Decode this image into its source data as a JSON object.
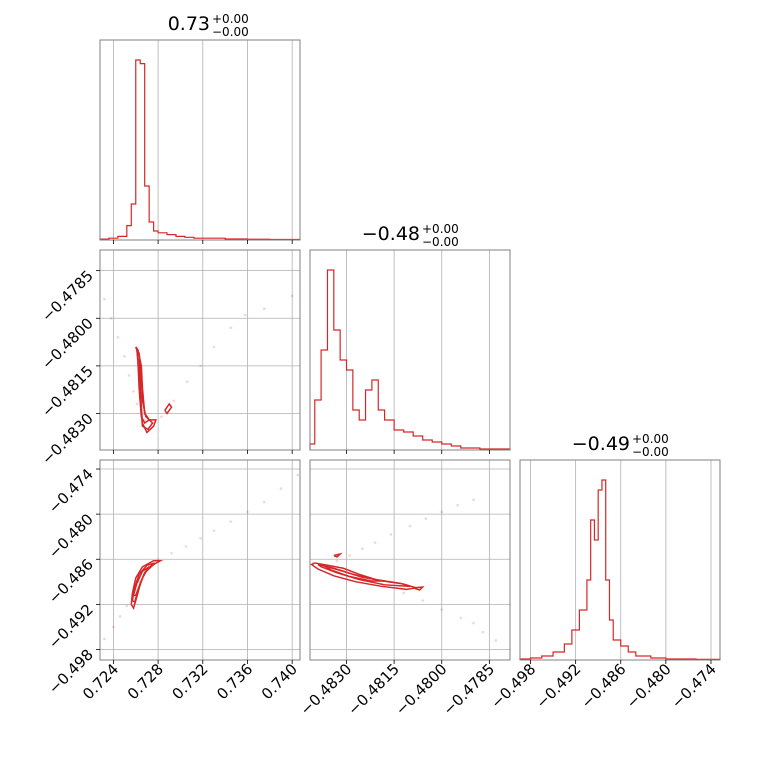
{
  "chart_data": {
    "type": "corner",
    "color": "#d62728",
    "grid": true,
    "titles": [
      {
        "value": "0.73",
        "upper": "+0.00",
        "lower": "−0.00"
      },
      {
        "value": "−0.48",
        "upper": "+0.00",
        "lower": "−0.00"
      },
      {
        "value": "−0.49",
        "upper": "+0.00",
        "lower": "−0.00"
      }
    ],
    "params": [
      {
        "range": [
          0.7228,
          0.7407
        ],
        "ticks": [
          0.724,
          0.728,
          0.732,
          0.736,
          0.74
        ],
        "tick_labels": [
          "0.724",
          "0.728",
          "0.732",
          "0.736",
          "0.740"
        ]
      },
      {
        "range": [
          -0.48415,
          -0.47785
        ],
        "ticks": [
          -0.483,
          -0.4815,
          -0.48,
          -0.4785
        ],
        "tick_labels": [
          "−0.4830",
          "−0.4815",
          "−0.4800",
          "−0.4785"
        ]
      },
      {
        "range": [
          -0.4994,
          -0.4728
        ],
        "ticks": [
          -0.498,
          -0.492,
          -0.486,
          -0.48,
          -0.474
        ],
        "tick_labels": [
          "−0.498",
          "−0.492",
          "−0.486",
          "−0.480",
          "−0.474"
        ]
      }
    ],
    "hist_0": {
      "bins": [
        0.7228,
        0.7236,
        0.7244,
        0.7252,
        0.7256,
        0.726,
        0.7264,
        0.7268,
        0.7272,
        0.7276,
        0.728,
        0.7288,
        0.7296,
        0.7304,
        0.7312,
        0.732,
        0.734,
        0.736,
        0.738,
        0.7407
      ],
      "counts": [
        0.5,
        1,
        2,
        8,
        20,
        100,
        98,
        30,
        10,
        5,
        4,
        3,
        2,
        1.5,
        1,
        1,
        0.6,
        0.4,
        0.3
      ]
    },
    "hist_1": {
      "bins": [
        -0.48415,
        -0.484,
        -0.4838,
        -0.4836,
        -0.4834,
        -0.4832,
        -0.483,
        -0.4828,
        -0.4826,
        -0.4824,
        -0.4822,
        -0.482,
        -0.4818,
        -0.4815,
        -0.4812,
        -0.4809,
        -0.4806,
        -0.4803,
        -0.48,
        -0.4797,
        -0.4794,
        -0.4791,
        -0.4788,
        -0.47785
      ],
      "counts": [
        3,
        25,
        50,
        90,
        60,
        45,
        40,
        20,
        15,
        30,
        35,
        20,
        15,
        10,
        9,
        7,
        5,
        4,
        3,
        2,
        1,
        1,
        0.5
      ]
    },
    "hist_2": {
      "bins": [
        -0.4994,
        -0.498,
        -0.4965,
        -0.495,
        -0.4935,
        -0.4925,
        -0.4915,
        -0.4905,
        -0.49,
        -0.4895,
        -0.489,
        -0.4885,
        -0.488,
        -0.4875,
        -0.487,
        -0.486,
        -0.485,
        -0.484,
        -0.482,
        -0.48,
        -0.476,
        -0.4728
      ],
      "counts": [
        0.5,
        1,
        2,
        4,
        8,
        15,
        25,
        40,
        70,
        60,
        85,
        90,
        40,
        20,
        10,
        7,
        4,
        2,
        1,
        0.5,
        0.3
      ]
    },
    "scatter_1_0": {
      "points": [
        [
          0.7232,
          -0.4794
        ],
        [
          0.7238,
          -0.48
        ],
        [
          0.7244,
          -0.4806
        ],
        [
          0.725,
          -0.4812
        ],
        [
          0.7254,
          -0.4818
        ],
        [
          0.7258,
          -0.4823
        ],
        [
          0.7261,
          -0.4827
        ],
        [
          0.7268,
          -0.4832
        ],
        [
          0.7275,
          -0.4833
        ],
        [
          0.7283,
          -0.4831
        ],
        [
          0.7294,
          -0.4826
        ],
        [
          0.7306,
          -0.482
        ],
        [
          0.7318,
          -0.4815
        ],
        [
          0.733,
          -0.4809
        ],
        [
          0.7345,
          -0.4803
        ],
        [
          0.7358,
          -0.4799
        ],
        [
          0.7375,
          -0.4797
        ],
        [
          0.74,
          -0.4793
        ]
      ],
      "contours": [
        [
          [
            0.726,
            -0.4809
          ],
          [
            0.7263,
            -0.4812
          ],
          [
            0.7264,
            -0.482
          ],
          [
            0.7265,
            -0.4828
          ],
          [
            0.7266,
            -0.4833
          ],
          [
            0.727,
            -0.4836
          ],
          [
            0.7276,
            -0.4834
          ],
          [
            0.7278,
            -0.4832
          ],
          [
            0.7272,
            -0.4832
          ],
          [
            0.7268,
            -0.483
          ],
          [
            0.7266,
            -0.4822
          ],
          [
            0.7265,
            -0.4815
          ],
          [
            0.7262,
            -0.481
          ],
          [
            0.726,
            -0.4809
          ]
        ],
        [
          [
            0.7261,
            -0.481
          ],
          [
            0.7263,
            -0.4818
          ],
          [
            0.7264,
            -0.4826
          ],
          [
            0.7266,
            -0.4834
          ],
          [
            0.7271,
            -0.4835
          ],
          [
            0.7275,
            -0.4833
          ],
          [
            0.7269,
            -0.4831
          ],
          [
            0.7266,
            -0.4826
          ],
          [
            0.7265,
            -0.4818
          ],
          [
            0.7263,
            -0.4811
          ],
          [
            0.7261,
            -0.481
          ]
        ],
        [
          [
            0.7262,
            -0.4814
          ],
          [
            0.7263,
            -0.4822
          ],
          [
            0.7265,
            -0.4831
          ],
          [
            0.7268,
            -0.4833
          ],
          [
            0.7272,
            -0.4832
          ],
          [
            0.7268,
            -0.483
          ],
          [
            0.7266,
            -0.4824
          ],
          [
            0.7264,
            -0.4816
          ],
          [
            0.7262,
            -0.4814
          ]
        ],
        [
          [
            0.7286,
            -0.4829
          ],
          [
            0.729,
            -0.4827
          ],
          [
            0.7292,
            -0.4828
          ],
          [
            0.7288,
            -0.483
          ],
          [
            0.7286,
            -0.4829
          ]
        ]
      ]
    },
    "scatter_2_0": {
      "points": [
        [
          0.7232,
          -0.4966
        ],
        [
          0.724,
          -0.495
        ],
        [
          0.7246,
          -0.4936
        ],
        [
          0.7252,
          -0.4922
        ],
        [
          0.7258,
          -0.4905
        ],
        [
          0.7263,
          -0.489
        ],
        [
          0.727,
          -0.4872
        ],
        [
          0.728,
          -0.486
        ],
        [
          0.7292,
          -0.4852
        ],
        [
          0.7305,
          -0.4843
        ],
        [
          0.7318,
          -0.4832
        ],
        [
          0.733,
          -0.4822
        ],
        [
          0.7345,
          -0.481
        ],
        [
          0.736,
          -0.4797
        ],
        [
          0.7375,
          -0.4784
        ],
        [
          0.739,
          -0.4766
        ],
        [
          0.7405,
          -0.4748
        ]
      ],
      "contours": [
        [
          [
            0.7256,
            -0.492
          ],
          [
            0.7257,
            -0.4905
          ],
          [
            0.726,
            -0.4885
          ],
          [
            0.7266,
            -0.487
          ],
          [
            0.7276,
            -0.4862
          ],
          [
            0.7282,
            -0.4862
          ],
          [
            0.7276,
            -0.4867
          ],
          [
            0.7268,
            -0.4878
          ],
          [
            0.7264,
            -0.4893
          ],
          [
            0.7261,
            -0.491
          ],
          [
            0.7258,
            -0.4925
          ],
          [
            0.7256,
            -0.492
          ]
        ],
        [
          [
            0.7257,
            -0.4915
          ],
          [
            0.7259,
            -0.4898
          ],
          [
            0.7263,
            -0.488
          ],
          [
            0.727,
            -0.4868
          ],
          [
            0.7277,
            -0.4865
          ],
          [
            0.7271,
            -0.4872
          ],
          [
            0.7266,
            -0.4885
          ],
          [
            0.7262,
            -0.4902
          ],
          [
            0.7259,
            -0.4917
          ],
          [
            0.7257,
            -0.4915
          ]
        ],
        [
          [
            0.7258,
            -0.4908
          ],
          [
            0.7261,
            -0.4892
          ],
          [
            0.7266,
            -0.4876
          ],
          [
            0.7272,
            -0.487
          ],
          [
            0.7268,
            -0.4878
          ],
          [
            0.7264,
            -0.4892
          ],
          [
            0.726,
            -0.4908
          ],
          [
            0.7258,
            -0.4908
          ]
        ]
      ]
    },
    "scatter_2_1": {
      "points": [
        [
          -0.48405,
          -0.4865
        ],
        [
          -0.4837,
          -0.487
        ],
        [
          -0.4833,
          -0.4862
        ],
        [
          -0.4829,
          -0.4855
        ],
        [
          -0.4825,
          -0.4846
        ],
        [
          -0.4821,
          -0.4838
        ],
        [
          -0.4816,
          -0.4827
        ],
        [
          -0.481,
          -0.4816
        ],
        [
          -0.4805,
          -0.4806
        ],
        [
          -0.48,
          -0.4797
        ],
        [
          -0.4795,
          -0.4788
        ],
        [
          -0.479,
          -0.4781
        ],
        [
          -0.4812,
          -0.4905
        ],
        [
          -0.4806,
          -0.4915
        ],
        [
          -0.48,
          -0.4927
        ],
        [
          -0.4794,
          -0.4938
        ],
        [
          -0.479,
          -0.4945
        ],
        [
          -0.4787,
          -0.4957
        ],
        [
          -0.4783,
          -0.4968
        ]
      ],
      "contours": [
        [
          [
            -0.484,
            -0.4865
          ],
          [
            -0.4836,
            -0.4868
          ],
          [
            -0.4831,
            -0.4872
          ],
          [
            -0.4826,
            -0.488
          ],
          [
            -0.482,
            -0.4888
          ],
          [
            -0.4812,
            -0.4893
          ],
          [
            -0.4808,
            -0.4898
          ],
          [
            -0.4811,
            -0.49
          ],
          [
            -0.4819,
            -0.4896
          ],
          [
            -0.4827,
            -0.489
          ],
          [
            -0.4834,
            -0.4882
          ],
          [
            -0.4839,
            -0.4873
          ],
          [
            -0.4841,
            -0.4867
          ],
          [
            -0.484,
            -0.4865
          ]
        ],
        [
          [
            -0.4839,
            -0.4867
          ],
          [
            -0.4834,
            -0.4872
          ],
          [
            -0.4828,
            -0.488
          ],
          [
            -0.4821,
            -0.4887
          ],
          [
            -0.4813,
            -0.4892
          ],
          [
            -0.481,
            -0.4896
          ],
          [
            -0.4818,
            -0.4894
          ],
          [
            -0.4826,
            -0.4887
          ],
          [
            -0.4833,
            -0.4878
          ],
          [
            -0.4838,
            -0.487
          ],
          [
            -0.4839,
            -0.4867
          ]
        ],
        [
          [
            -0.4837,
            -0.4869
          ],
          [
            -0.4831,
            -0.4876
          ],
          [
            -0.4825,
            -0.4884
          ],
          [
            -0.4818,
            -0.4889
          ],
          [
            -0.4822,
            -0.4889
          ],
          [
            -0.4829,
            -0.4883
          ],
          [
            -0.4835,
            -0.4874
          ],
          [
            -0.4837,
            -0.4869
          ]
        ],
        [
          [
            -0.4834,
            -0.4855
          ],
          [
            -0.4832,
            -0.4853
          ],
          [
            -0.4833,
            -0.4857
          ],
          [
            -0.4834,
            -0.4855
          ]
        ],
        [
          [
            -0.4809,
            -0.4898
          ],
          [
            -0.4806,
            -0.4897
          ],
          [
            -0.4807,
            -0.4901
          ],
          [
            -0.4809,
            -0.4898
          ]
        ]
      ]
    }
  }
}
